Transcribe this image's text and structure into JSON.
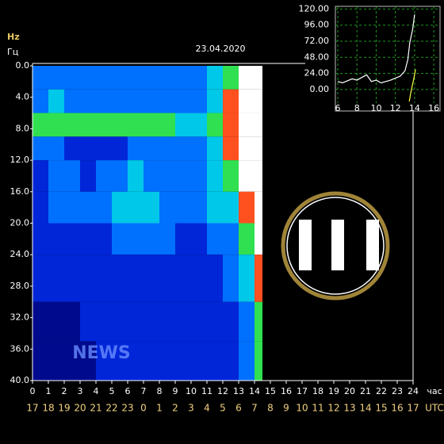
{
  "chart_data": [
    {
      "type": "heatmap",
      "date": "23.04.2020",
      "y_unit_top": "Hz",
      "y_unit_bottom": "Гц",
      "x_unit": "час",
      "x2_unit": "UTC",
      "watermark": "NEWS",
      "xlim": [
        0,
        24
      ],
      "xticks": [
        0,
        1,
        2,
        3,
        4,
        5,
        6,
        7,
        8,
        9,
        10,
        11,
        12,
        13,
        14,
        15,
        16,
        17,
        18,
        19,
        20,
        21,
        22,
        23,
        24
      ],
      "x2_labels": [
        "17",
        "18",
        "19",
        "20",
        "21",
        "22",
        "23",
        "0",
        "1",
        "2",
        "3",
        "4",
        "5",
        "6",
        "7",
        "8",
        "9",
        "10",
        "11",
        "12",
        "13",
        "14",
        "15",
        "16",
        "17"
      ],
      "ylim": [
        0,
        40
      ],
      "y_inverted": true,
      "yticks": [
        {
          "value": 0,
          "label": "0.0"
        },
        {
          "value": 4,
          "label": "4.0"
        },
        {
          "value": 8,
          "label": "8.0"
        },
        {
          "value": 12,
          "label": "12.0"
        },
        {
          "value": 16,
          "label": "16.0"
        },
        {
          "value": 20,
          "label": "20.0"
        },
        {
          "value": 24,
          "label": "24.0"
        },
        {
          "value": 28,
          "label": "28.0"
        },
        {
          "value": 32,
          "label": "32.0"
        },
        {
          "value": 36,
          "label": "36.0"
        },
        {
          "value": 40,
          "label": "40.0"
        }
      ],
      "x_edges": [
        0,
        1,
        2,
        3,
        4,
        5,
        6,
        7,
        8,
        9,
        10,
        11,
        12,
        13,
        14,
        14.5
      ],
      "y_edges": [
        0,
        3,
        6,
        9,
        12,
        16,
        20,
        24,
        30,
        35,
        40
      ],
      "color_scale": [
        "#000a8c",
        "#0026d8",
        "#0070ff",
        "#00c8e8",
        "#30e050",
        "#ff5020",
        "#ffffff"
      ],
      "z": [
        [
          2,
          2,
          2,
          2,
          2,
          2,
          2,
          2,
          2,
          2,
          2,
          3,
          4,
          6,
          6
        ],
        [
          2,
          3,
          2,
          2,
          2,
          2,
          2,
          2,
          2,
          2,
          2,
          3,
          5,
          6,
          6
        ],
        [
          4,
          4,
          4,
          4,
          4,
          4,
          4,
          4,
          4,
          3,
          3,
          4,
          5,
          6,
          6
        ],
        [
          2,
          2,
          1,
          1,
          1,
          1,
          2,
          2,
          2,
          2,
          2,
          3,
          5,
          6,
          6
        ],
        [
          1,
          2,
          2,
          1,
          2,
          2,
          3,
          2,
          2,
          2,
          2,
          3,
          4,
          6,
          6
        ],
        [
          1,
          2,
          2,
          2,
          2,
          3,
          3,
          3,
          2,
          2,
          2,
          3,
          3,
          5,
          6
        ],
        [
          1,
          1,
          1,
          1,
          1,
          2,
          2,
          2,
          2,
          1,
          1,
          2,
          2,
          4,
          6
        ],
        [
          1,
          1,
          1,
          1,
          1,
          1,
          1,
          1,
          1,
          1,
          1,
          1,
          2,
          3,
          5
        ],
        [
          0,
          0,
          0,
          1,
          1,
          1,
          1,
          1,
          1,
          1,
          1,
          1,
          1,
          2,
          4
        ],
        [
          0,
          0,
          0,
          0,
          1,
          1,
          1,
          1,
          1,
          1,
          1,
          1,
          1,
          2,
          4
        ]
      ]
    },
    {
      "type": "line",
      "xlim": [
        5.75,
        16.65
      ],
      "xticks": [
        6,
        8,
        10,
        12,
        14,
        16
      ],
      "ylim": [
        -32,
        124
      ],
      "yticks": [
        {
          "value": 0,
          "label": "0.00"
        },
        {
          "value": 24,
          "label": "24.00"
        },
        {
          "value": 48,
          "label": "48.00"
        },
        {
          "value": 72,
          "label": "72.00"
        },
        {
          "value": 96,
          "label": "96.00"
        },
        {
          "value": 120,
          "label": "120.00"
        }
      ],
      "grid": true,
      "series": [
        {
          "color": "#ffffff",
          "x": [
            6,
            6.5,
            7,
            7.5,
            8,
            8.5,
            9,
            9.5,
            10,
            10.5,
            11,
            11.5,
            12,
            12.5,
            13,
            13.3,
            13.5,
            13.8,
            14
          ],
          "values": [
            12,
            10,
            13,
            16,
            14,
            18,
            22,
            12,
            14,
            10,
            12,
            14,
            17,
            20,
            28,
            45,
            70,
            90,
            112
          ]
        },
        {
          "color": "#ffff40",
          "x": [
            13.3,
            13.6,
            13.9,
            14.1
          ],
          "values": [
            -30,
            -5,
            15,
            30
          ]
        }
      ]
    }
  ]
}
